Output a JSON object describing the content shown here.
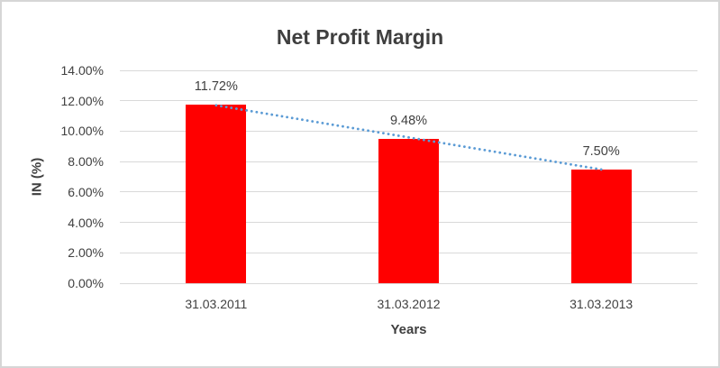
{
  "chart_data": {
    "type": "bar",
    "title": "Net Profit Margin",
    "xlabel": "Years",
    "ylabel": "IN (%)",
    "categories": [
      "31.03.2011",
      "31.03.2012",
      "31.03.2013"
    ],
    "values": [
      11.72,
      9.48,
      7.5
    ],
    "data_labels": [
      "11.72%",
      "9.48%",
      "7.50%"
    ],
    "ylim": [
      0,
      14
    ],
    "yticks": [
      {
        "value": 0,
        "label": "0.00%"
      },
      {
        "value": 2,
        "label": "2.00%"
      },
      {
        "value": 4,
        "label": "4.00%"
      },
      {
        "value": 6,
        "label": "6.00%"
      },
      {
        "value": 8,
        "label": "8.00%"
      },
      {
        "value": 10,
        "label": "10.00%"
      },
      {
        "value": 12,
        "label": "12.00%"
      },
      {
        "value": 14,
        "label": "14.00%"
      }
    ],
    "grid": true,
    "legend": "none",
    "trendline": {
      "type": "linear",
      "style": "dotted",
      "start_value": 11.7,
      "end_value": 7.48
    }
  },
  "colors": {
    "bar": "#ff0000",
    "trendline": "#5b9bd5",
    "gridline": "#d9d9d9",
    "text": "#404040",
    "title_text": "#3f3f3f",
    "frame_border": "#d6d6d6"
  }
}
